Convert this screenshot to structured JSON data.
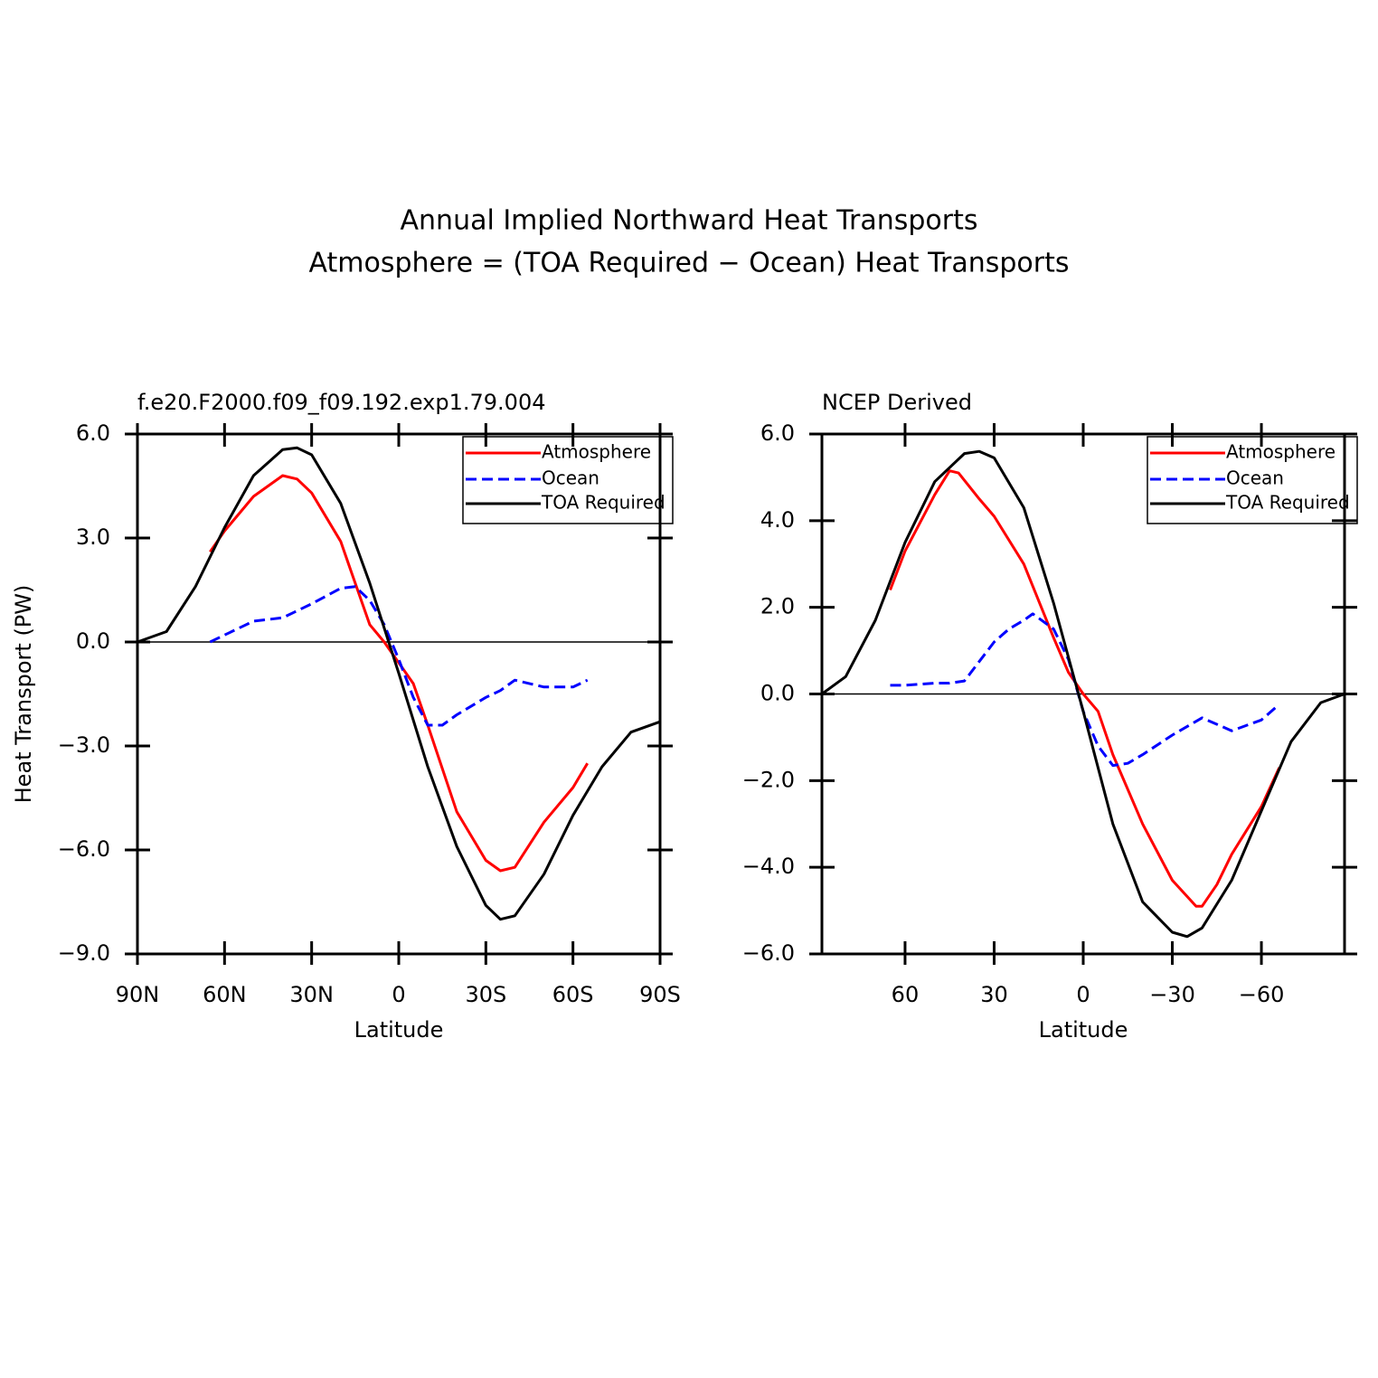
{
  "title": [
    "Annual Implied Northward Heat Transports",
    "Atmosphere = (TOA Required − Ocean) Heat Transports"
  ],
  "chart_data": [
    {
      "type": "line",
      "title": "f.e20.F2000.f09_f09.192.exp1.79.004",
      "x_label": "Latitude",
      "y_label": "Heat Transport (PW)",
      "xlim": [
        90,
        -90
      ],
      "ylim": [
        -9,
        6
      ],
      "xticks": [
        {
          "value": 90,
          "label": "90N"
        },
        {
          "value": 60,
          "label": "60N"
        },
        {
          "value": 30,
          "label": "30N"
        },
        0,
        {
          "value": -30,
          "label": "30S"
        },
        {
          "value": -60,
          "label": "60S"
        },
        {
          "value": -90,
          "label": "90S"
        }
      ],
      "yticks": [
        {
          "value": -9,
          "label": "−9.0"
        },
        {
          "value": -6,
          "label": "−6.0"
        },
        {
          "value": -3,
          "label": "−3.0"
        },
        {
          "value": 0,
          "label": "0.0"
        },
        {
          "value": 3,
          "label": "3.0"
        },
        {
          "value": 6,
          "label": "6.0"
        }
      ],
      "series": [
        {
          "name": "Atmosphere",
          "color": "#ff0000",
          "linestyle": "solid",
          "x": [
            65,
            60,
            50,
            40,
            35,
            30,
            20,
            15,
            10,
            5,
            0,
            -5,
            -10,
            -20,
            -30,
            -35,
            -40,
            -50,
            -60,
            -65
          ],
          "values": [
            2.6,
            3.2,
            4.2,
            4.8,
            4.7,
            4.3,
            2.9,
            1.7,
            0.5,
            0,
            -0.6,
            -1.2,
            -2.4,
            -4.9,
            -6.3,
            -6.6,
            -6.5,
            -5.2,
            -4.2,
            -3.5
          ]
        },
        {
          "name": "Ocean",
          "color": "#0000ff",
          "linestyle": "dashed",
          "x": [
            65,
            60,
            50,
            40,
            30,
            20,
            15,
            10,
            5,
            0,
            -5,
            -10,
            -15,
            -20,
            -30,
            -35,
            -40,
            -50,
            -60,
            -65
          ],
          "values": [
            0,
            0.2,
            0.6,
            0.7,
            1.1,
            1.55,
            1.6,
            1.2,
            0.5,
            -0.5,
            -1.6,
            -2.4,
            -2.4,
            -2.1,
            -1.6,
            -1.4,
            -1.1,
            -1.3,
            -1.3,
            -1.1
          ]
        },
        {
          "name": "TOA Required",
          "color": "#000000",
          "linestyle": "solid",
          "x": [
            90,
            80,
            70,
            60,
            50,
            40,
            35,
            30,
            20,
            10,
            0,
            -10,
            -20,
            -30,
            -35,
            -40,
            -50,
            -60,
            -70,
            -80,
            -90
          ],
          "values": [
            0,
            0.3,
            1.6,
            3.3,
            4.8,
            5.55,
            5.6,
            5.4,
            4.0,
            1.7,
            -0.9,
            -3.6,
            -5.9,
            -7.6,
            -8.0,
            -7.9,
            -6.7,
            -5.0,
            -3.6,
            -2.6,
            -2.3
          ]
        }
      ]
    },
    {
      "type": "line",
      "title": "NCEP Derived",
      "x_label": "Latitude",
      "xlim": [
        88,
        -88
      ],
      "ylim": [
        -6,
        6
      ],
      "xticks": [
        60,
        30,
        0,
        {
          "value": -30,
          "label": "−30"
        },
        {
          "value": -60,
          "label": "−60"
        }
      ],
      "yticks": [
        {
          "value": -6,
          "label": "−6.0"
        },
        {
          "value": -4,
          "label": "−4.0"
        },
        {
          "value": -2,
          "label": "−2.0"
        },
        {
          "value": 0,
          "label": "0.0"
        },
        {
          "value": 2,
          "label": "2.0"
        },
        {
          "value": 4,
          "label": "4.0"
        },
        {
          "value": 6,
          "label": "6.0"
        }
      ],
      "series": [
        {
          "name": "Atmosphere",
          "color": "#ff0000",
          "linestyle": "solid",
          "x": [
            65,
            60,
            50,
            45,
            42,
            35,
            30,
            20,
            10,
            5,
            0,
            -5,
            -10,
            -20,
            -30,
            -38,
            -40,
            -45,
            -50,
            -60,
            -66
          ],
          "values": [
            2.4,
            3.3,
            4.6,
            5.15,
            5.1,
            4.5,
            4.1,
            3.0,
            1.3,
            0.5,
            0,
            -0.4,
            -1.4,
            -3.0,
            -4.3,
            -4.9,
            -4.9,
            -4.4,
            -3.7,
            -2.6,
            -1.7
          ]
        },
        {
          "name": "Ocean",
          "color": "#0000ff",
          "linestyle": "dashed",
          "x": [
            65,
            60,
            50,
            45,
            40,
            30,
            25,
            20,
            17,
            10,
            5,
            0,
            -5,
            -10,
            -15,
            -20,
            -30,
            -40,
            -50,
            -60,
            -65
          ],
          "values": [
            0.2,
            0.2,
            0.25,
            0.25,
            0.3,
            1.2,
            1.5,
            1.7,
            1.85,
            1.5,
            0.8,
            -0.4,
            -1.2,
            -1.65,
            -1.6,
            -1.4,
            -0.95,
            -0.55,
            -0.85,
            -0.6,
            -0.3
          ]
        },
        {
          "name": "TOA Required",
          "color": "#000000",
          "linestyle": "solid",
          "x": [
            88,
            80,
            70,
            60,
            50,
            40,
            35,
            30,
            20,
            10,
            0,
            -10,
            -20,
            -30,
            -35,
            -40,
            -50,
            -60,
            -70,
            -80,
            -88
          ],
          "values": [
            0,
            0.4,
            1.7,
            3.5,
            4.9,
            5.55,
            5.6,
            5.45,
            4.3,
            2.1,
            -0.4,
            -3.0,
            -4.8,
            -5.5,
            -5.6,
            -5.4,
            -4.3,
            -2.7,
            -1.1,
            -0.2,
            0
          ]
        }
      ]
    }
  ]
}
